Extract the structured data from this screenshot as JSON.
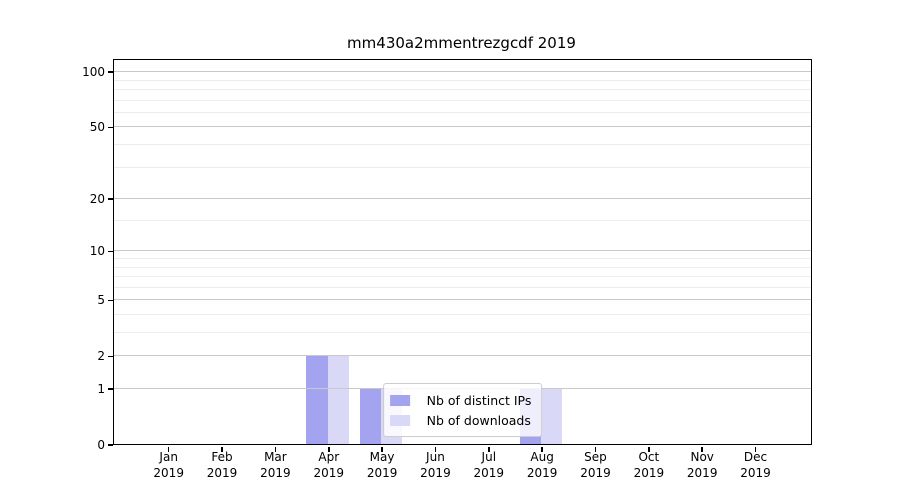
{
  "chart_data": {
    "type": "bar",
    "title": "mm430a2mmentrezgcdf 2019",
    "categories": [
      "Jan",
      "Feb",
      "Mar",
      "Apr",
      "May",
      "Jun",
      "Jul",
      "Aug",
      "Sep",
      "Oct",
      "Nov",
      "Dec"
    ],
    "category_year": "2019",
    "series": [
      {
        "name": "Nb of distinct IPs",
        "color": "#a3a3ef",
        "values": [
          0,
          0,
          0,
          2,
          1,
          0,
          0,
          1,
          0,
          0,
          0,
          0
        ]
      },
      {
        "name": "Nb of downloads",
        "color": "#d9d9f7",
        "values": [
          0,
          0,
          0,
          2,
          1,
          0,
          0,
          1,
          0,
          0,
          0,
          0
        ]
      }
    ],
    "xlabel": "",
    "ylabel": "",
    "y_scale": "log1p",
    "ylim": [
      0,
      115
    ],
    "y_ticks": [
      0,
      1,
      2,
      5,
      10,
      20,
      50,
      100
    ],
    "y_minor_ticks": [
      3,
      4,
      6,
      7,
      8,
      9,
      15,
      30,
      40,
      60,
      70,
      80,
      90
    ],
    "grid": "horizontal",
    "legend_position": "lower center",
    "colors": {
      "major_gridline": "#c9c9c9",
      "minor_gridline": "#ededed",
      "axis": "#000000",
      "legend_border": "#cccccc"
    }
  }
}
